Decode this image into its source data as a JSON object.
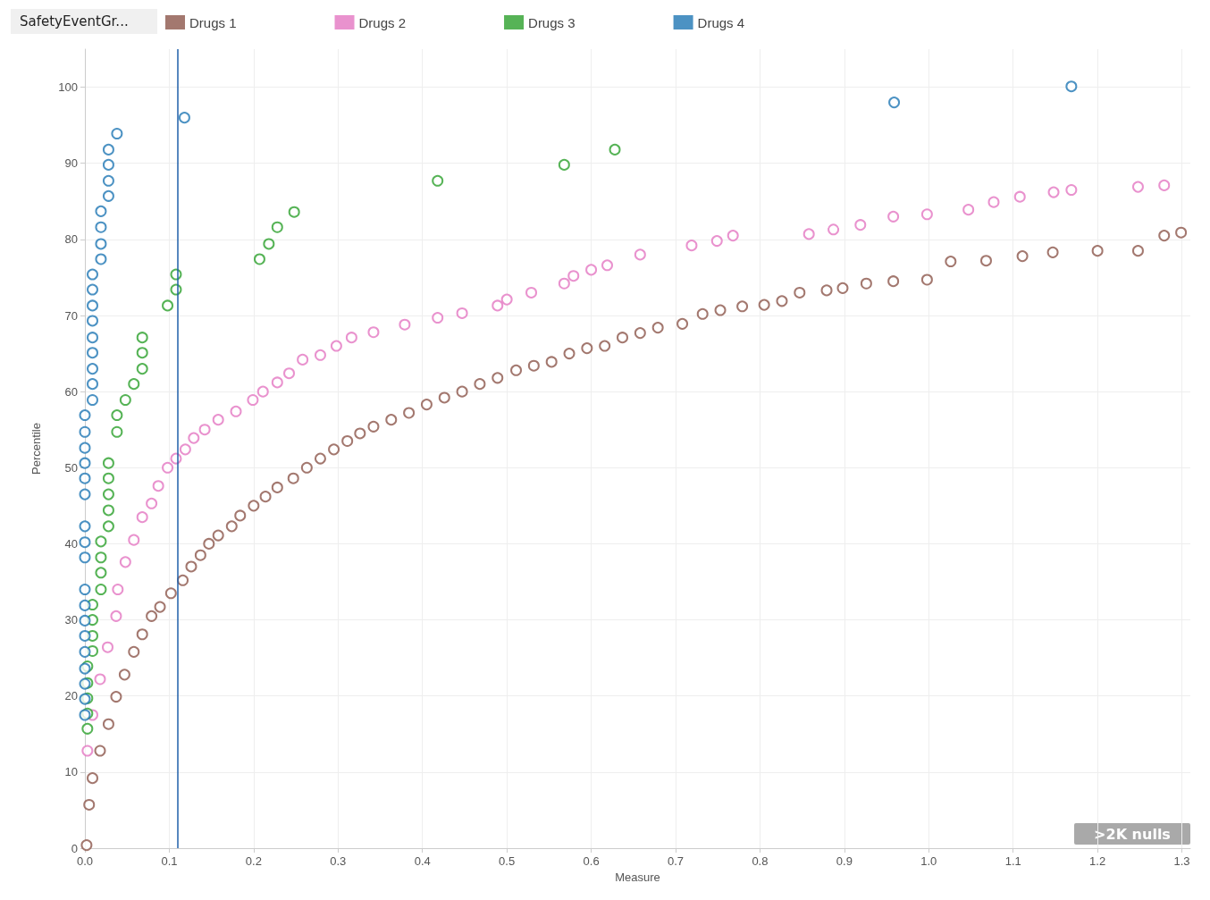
{
  "chart_data": {
    "type": "scatter",
    "xlabel": "Measure",
    "ylabel": "Percentile",
    "legend_title": "SafetyEventGr...",
    "legend": "top left",
    "grid": true,
    "marker": "circle",
    "xlim": [
      0,
      1.31
    ],
    "xticks": [
      {
        "value": 0,
        "label": "0.0"
      },
      0.1,
      0.2,
      0.3,
      0.4,
      0.5,
      0.6,
      0.7,
      0.8,
      0.9,
      {
        "value": 1,
        "label": "1.0"
      },
      1.1,
      1.2,
      1.3
    ],
    "ylim": [
      0,
      105
    ],
    "yticks": [
      0,
      10,
      20,
      30,
      40,
      50,
      60,
      70,
      80,
      90,
      100
    ],
    "ref_lines": [
      {
        "axis": "x",
        "value": 0.113,
        "color": "#1f5fa8"
      }
    ],
    "annotations": [
      ">2K nulls"
    ],
    "series": [
      {
        "name": "Drugs 1",
        "color": "#8c564b",
        "x": [
          0.002,
          0.005,
          0.009,
          0.018,
          0.028,
          0.037,
          0.047,
          0.058,
          0.068,
          0.079,
          0.089,
          0.102,
          0.116,
          0.126,
          0.137,
          0.147,
          0.158,
          0.174,
          0.184,
          0.2,
          0.214,
          0.228,
          0.247,
          0.263,
          0.279,
          0.295,
          0.311,
          0.326,
          0.342,
          0.363,
          0.384,
          0.405,
          0.426,
          0.447,
          0.468,
          0.489,
          0.511,
          0.532,
          0.553,
          0.574,
          0.595,
          0.616,
          0.637,
          0.658,
          0.679,
          0.708,
          0.732,
          0.753,
          0.779,
          0.805,
          0.826,
          0.847,
          0.879,
          0.898,
          0.926,
          0.958,
          0.998,
          1.026,
          1.068,
          1.111,
          1.147,
          1.2,
          1.248,
          1.279,
          1.299
        ],
        "values": [
          0.4,
          5.7,
          9.2,
          12.8,
          16.3,
          19.9,
          22.8,
          25.8,
          28.1,
          30.5,
          31.7,
          33.5,
          35.2,
          37,
          38.5,
          40,
          41.1,
          42.3,
          43.7,
          45,
          46.2,
          47.4,
          48.6,
          50,
          51.2,
          52.4,
          53.5,
          54.5,
          55.4,
          56.3,
          57.2,
          58.3,
          59.2,
          60,
          61,
          61.8,
          62.8,
          63.4,
          63.9,
          65,
          65.7,
          66,
          67.1,
          67.7,
          68.4,
          68.9,
          70.2,
          70.7,
          71.2,
          71.4,
          71.9,
          73,
          73.3,
          73.6,
          74.2,
          74.5,
          74.7,
          77.1,
          77.2,
          77.8,
          78.3,
          78.5,
          78.5,
          80.5,
          80.9
        ]
      },
      {
        "name": "Drugs 2",
        "color": "#e377c2",
        "x": [
          0.003,
          0.009,
          0.018,
          0.027,
          0.037,
          0.039,
          0.048,
          0.058,
          0.068,
          0.079,
          0.087,
          0.098,
          0.108,
          0.119,
          0.129,
          0.142,
          0.158,
          0.179,
          0.199,
          0.211,
          0.228,
          0.242,
          0.258,
          0.279,
          0.298,
          0.316,
          0.342,
          0.379,
          0.418,
          0.447,
          0.489,
          0.5,
          0.529,
          0.568,
          0.579,
          0.6,
          0.619,
          0.658,
          0.719,
          0.749,
          0.768,
          0.858,
          0.887,
          0.919,
          0.958,
          0.998,
          1.047,
          1.077,
          1.108,
          1.148,
          1.169,
          1.248,
          1.279
        ],
        "values": [
          12.8,
          17.5,
          22.2,
          26.4,
          30.5,
          34,
          37.6,
          40.5,
          43.5,
          45.3,
          47.6,
          50,
          51.2,
          52.4,
          53.9,
          55,
          56.3,
          57.4,
          58.9,
          60,
          61.2,
          62.4,
          64.2,
          64.8,
          66,
          67.1,
          67.8,
          68.8,
          69.7,
          70.3,
          71.3,
          72.1,
          73,
          74.2,
          75.2,
          76,
          76.6,
          78,
          79.2,
          79.8,
          80.5,
          80.7,
          81.3,
          81.9,
          83,
          83.3,
          83.9,
          84.9,
          85.6,
          86.2,
          86.5,
          86.9,
          87.1
        ]
      },
      {
        "name": "Drugs 3",
        "color": "#2ca02c",
        "x": [
          0.003,
          0.003,
          0.003,
          0.003,
          0.003,
          0.009,
          0.009,
          0.009,
          0.009,
          0.019,
          0.019,
          0.019,
          0.019,
          0.028,
          0.028,
          0.028,
          0.028,
          0.028,
          0.038,
          0.038,
          0.048,
          0.058,
          0.068,
          0.068,
          0.068,
          0.098,
          0.108,
          0.108,
          0.207,
          0.218,
          0.228,
          0.248,
          0.418,
          0.568,
          0.628
        ],
        "values": [
          15.7,
          17.7,
          19.7,
          21.7,
          23.9,
          25.9,
          27.9,
          30,
          32,
          34,
          36.2,
          38.2,
          40.3,
          42.3,
          44.4,
          46.5,
          48.6,
          50.6,
          54.7,
          56.9,
          58.9,
          61,
          63,
          65.1,
          67.1,
          71.3,
          73.4,
          75.4,
          77.4,
          79.4,
          81.6,
          83.6,
          87.7,
          89.8,
          91.8
        ]
      },
      {
        "name": "Drugs 4",
        "color": "#1f77b4",
        "x": [
          0,
          0,
          0,
          0,
          0,
          0,
          0,
          0,
          0,
          0,
          0,
          0,
          0,
          0,
          0,
          0,
          0,
          0,
          0.009,
          0.009,
          0.009,
          0.009,
          0.009,
          0.009,
          0.009,
          0.009,
          0.009,
          0.019,
          0.019,
          0.019,
          0.019,
          0.028,
          0.028,
          0.028,
          0.028,
          0.038,
          0.118,
          0.959,
          1.169
        ],
        "values": [
          17.5,
          19.6,
          21.6,
          23.6,
          25.8,
          27.9,
          29.9,
          31.9,
          34,
          38.2,
          40.2,
          42.3,
          46.5,
          48.6,
          50.6,
          52.6,
          54.7,
          56.9,
          58.9,
          61,
          63,
          65.1,
          67.1,
          69.3,
          71.3,
          73.4,
          75.4,
          77.4,
          79.4,
          81.6,
          83.7,
          85.7,
          87.7,
          89.8,
          91.8,
          93.9,
          96,
          98,
          100.1
        ]
      }
    ]
  }
}
